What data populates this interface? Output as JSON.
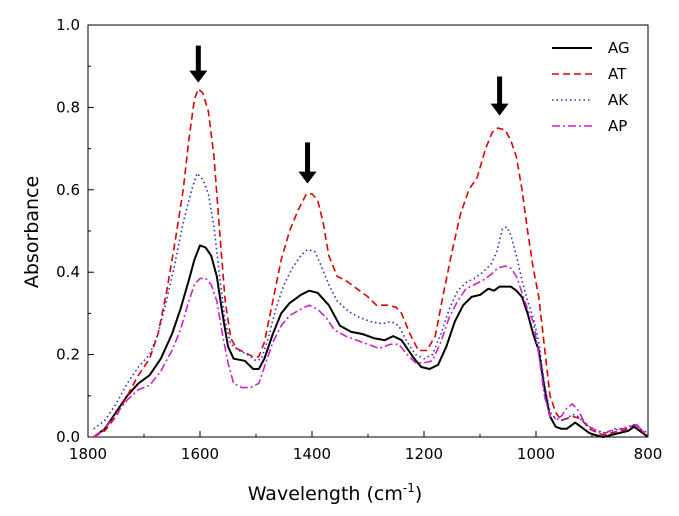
{
  "chart_data": {
    "type": "line",
    "title": "",
    "xlabel": "Wavelength (cm",
    "xlabel_sup": "-1",
    "xlabel_close": ")",
    "ylabel": "Absorbance",
    "xlim": [
      1800,
      800
    ],
    "ylim": [
      0.0,
      1.0
    ],
    "x_ticks": [
      1800,
      1600,
      1400,
      1200,
      1000,
      800
    ],
    "x_tick_labels": [
      "1800",
      "1600",
      "1400",
      "1200",
      "1000",
      "800"
    ],
    "y_ticks": [
      0.0,
      0.2,
      0.4,
      0.6,
      0.8,
      1.0
    ],
    "y_tick_labels": [
      "0.0",
      "0.2",
      "0.4",
      "0.6",
      "0.8",
      "1.0"
    ],
    "grid": false,
    "legend_position": "top-right",
    "annotations": [
      {
        "type": "arrow-down",
        "x": 1603,
        "tip_y": 0.86,
        "tail_y": 0.95
      },
      {
        "type": "arrow-down",
        "x": 1408,
        "tip_y": 0.615,
        "tail_y": 0.715
      },
      {
        "type": "arrow-down",
        "x": 1065,
        "tip_y": 0.78,
        "tail_y": 0.875
      }
    ],
    "series": [
      {
        "name": "AG",
        "color": "#000000",
        "style": "solid",
        "points": [
          [
            1790,
            0.0
          ],
          [
            1770,
            0.02
          ],
          [
            1750,
            0.06
          ],
          [
            1730,
            0.1
          ],
          [
            1710,
            0.13
          ],
          [
            1690,
            0.15
          ],
          [
            1670,
            0.19
          ],
          [
            1650,
            0.25
          ],
          [
            1635,
            0.31
          ],
          [
            1620,
            0.38
          ],
          [
            1610,
            0.43
          ],
          [
            1600,
            0.465
          ],
          [
            1590,
            0.46
          ],
          [
            1580,
            0.44
          ],
          [
            1570,
            0.39
          ],
          [
            1560,
            0.3
          ],
          [
            1550,
            0.22
          ],
          [
            1540,
            0.19
          ],
          [
            1520,
            0.185
          ],
          [
            1505,
            0.165
          ],
          [
            1495,
            0.165
          ],
          [
            1485,
            0.19
          ],
          [
            1470,
            0.25
          ],
          [
            1455,
            0.3
          ],
          [
            1440,
            0.325
          ],
          [
            1420,
            0.345
          ],
          [
            1405,
            0.355
          ],
          [
            1390,
            0.35
          ],
          [
            1370,
            0.32
          ],
          [
            1350,
            0.27
          ],
          [
            1330,
            0.255
          ],
          [
            1310,
            0.25
          ],
          [
            1290,
            0.24
          ],
          [
            1270,
            0.235
          ],
          [
            1255,
            0.245
          ],
          [
            1240,
            0.235
          ],
          [
            1220,
            0.195
          ],
          [
            1205,
            0.17
          ],
          [
            1190,
            0.165
          ],
          [
            1175,
            0.175
          ],
          [
            1160,
            0.22
          ],
          [
            1145,
            0.28
          ],
          [
            1130,
            0.32
          ],
          [
            1115,
            0.34
          ],
          [
            1100,
            0.345
          ],
          [
            1085,
            0.36
          ],
          [
            1075,
            0.355
          ],
          [
            1065,
            0.365
          ],
          [
            1055,
            0.365
          ],
          [
            1045,
            0.365
          ],
          [
            1035,
            0.355
          ],
          [
            1025,
            0.34
          ],
          [
            1015,
            0.3
          ],
          [
            1005,
            0.25
          ],
          [
            995,
            0.21
          ],
          [
            985,
            0.12
          ],
          [
            975,
            0.05
          ],
          [
            965,
            0.025
          ],
          [
            955,
            0.02
          ],
          [
            945,
            0.02
          ],
          [
            930,
            0.035
          ],
          [
            920,
            0.025
          ],
          [
            905,
            0.01
          ],
          [
            895,
            0.005
          ],
          [
            880,
            0.0
          ],
          [
            865,
            0.005
          ],
          [
            850,
            0.01
          ],
          [
            835,
            0.015
          ],
          [
            825,
            0.025
          ],
          [
            815,
            0.015
          ],
          [
            800,
            0.0
          ]
        ]
      },
      {
        "name": "AT",
        "color": "#e00000",
        "style": "dashed",
        "points": [
          [
            1790,
            0.0
          ],
          [
            1770,
            0.015
          ],
          [
            1750,
            0.05
          ],
          [
            1730,
            0.1
          ],
          [
            1710,
            0.15
          ],
          [
            1690,
            0.19
          ],
          [
            1675,
            0.25
          ],
          [
            1660,
            0.35
          ],
          [
            1645,
            0.47
          ],
          [
            1630,
            0.6
          ],
          [
            1620,
            0.72
          ],
          [
            1610,
            0.82
          ],
          [
            1603,
            0.845
          ],
          [
            1595,
            0.835
          ],
          [
            1585,
            0.79
          ],
          [
            1575,
            0.68
          ],
          [
            1565,
            0.5
          ],
          [
            1555,
            0.33
          ],
          [
            1545,
            0.24
          ],
          [
            1535,
            0.215
          ],
          [
            1520,
            0.205
          ],
          [
            1505,
            0.195
          ],
          [
            1495,
            0.195
          ],
          [
            1485,
            0.23
          ],
          [
            1470,
            0.33
          ],
          [
            1455,
            0.43
          ],
          [
            1440,
            0.5
          ],
          [
            1425,
            0.55
          ],
          [
            1410,
            0.59
          ],
          [
            1400,
            0.59
          ],
          [
            1390,
            0.575
          ],
          [
            1380,
            0.52
          ],
          [
            1370,
            0.44
          ],
          [
            1355,
            0.39
          ],
          [
            1340,
            0.38
          ],
          [
            1320,
            0.36
          ],
          [
            1300,
            0.34
          ],
          [
            1285,
            0.32
          ],
          [
            1265,
            0.32
          ],
          [
            1250,
            0.315
          ],
          [
            1240,
            0.3
          ],
          [
            1225,
            0.25
          ],
          [
            1210,
            0.21
          ],
          [
            1195,
            0.21
          ],
          [
            1180,
            0.245
          ],
          [
            1165,
            0.35
          ],
          [
            1150,
            0.45
          ],
          [
            1135,
            0.54
          ],
          [
            1120,
            0.6
          ],
          [
            1105,
            0.63
          ],
          [
            1090,
            0.7
          ],
          [
            1078,
            0.74
          ],
          [
            1068,
            0.75
          ],
          [
            1055,
            0.745
          ],
          [
            1045,
            0.72
          ],
          [
            1035,
            0.68
          ],
          [
            1025,
            0.6
          ],
          [
            1015,
            0.5
          ],
          [
            1005,
            0.41
          ],
          [
            995,
            0.34
          ],
          [
            985,
            0.22
          ],
          [
            975,
            0.1
          ],
          [
            965,
            0.06
          ],
          [
            955,
            0.04
          ],
          [
            945,
            0.045
          ],
          [
            935,
            0.05
          ],
          [
            920,
            0.045
          ],
          [
            905,
            0.02
          ],
          [
            890,
            0.01
          ],
          [
            880,
            0.005
          ],
          [
            865,
            0.01
          ],
          [
            850,
            0.015
          ],
          [
            835,
            0.02
          ],
          [
            825,
            0.03
          ],
          [
            815,
            0.02
          ],
          [
            800,
            0.0
          ]
        ]
      },
      {
        "name": "AK",
        "color": "#2a2acc",
        "style": "dotted",
        "points": [
          [
            1790,
            0.02
          ],
          [
            1770,
            0.04
          ],
          [
            1750,
            0.08
          ],
          [
            1730,
            0.13
          ],
          [
            1710,
            0.17
          ],
          [
            1690,
            0.2
          ],
          [
            1675,
            0.25
          ],
          [
            1660,
            0.33
          ],
          [
            1645,
            0.42
          ],
          [
            1630,
            0.52
          ],
          [
            1615,
            0.6
          ],
          [
            1605,
            0.64
          ],
          [
            1595,
            0.625
          ],
          [
            1585,
            0.59
          ],
          [
            1575,
            0.51
          ],
          [
            1565,
            0.39
          ],
          [
            1555,
            0.28
          ],
          [
            1545,
            0.225
          ],
          [
            1530,
            0.21
          ],
          [
            1515,
            0.2
          ],
          [
            1500,
            0.185
          ],
          [
            1490,
            0.19
          ],
          [
            1478,
            0.24
          ],
          [
            1465,
            0.31
          ],
          [
            1450,
            0.37
          ],
          [
            1435,
            0.41
          ],
          [
            1420,
            0.44
          ],
          [
            1408,
            0.455
          ],
          [
            1395,
            0.45
          ],
          [
            1385,
            0.42
          ],
          [
            1370,
            0.37
          ],
          [
            1355,
            0.33
          ],
          [
            1335,
            0.305
          ],
          [
            1315,
            0.29
          ],
          [
            1295,
            0.28
          ],
          [
            1275,
            0.275
          ],
          [
            1258,
            0.28
          ],
          [
            1245,
            0.27
          ],
          [
            1230,
            0.23
          ],
          [
            1215,
            0.2
          ],
          [
            1200,
            0.19
          ],
          [
            1185,
            0.2
          ],
          [
            1170,
            0.25
          ],
          [
            1155,
            0.31
          ],
          [
            1140,
            0.355
          ],
          [
            1125,
            0.375
          ],
          [
            1110,
            0.385
          ],
          [
            1095,
            0.4
          ],
          [
            1080,
            0.42
          ],
          [
            1070,
            0.45
          ],
          [
            1060,
            0.505
          ],
          [
            1052,
            0.51
          ],
          [
            1045,
            0.49
          ],
          [
            1035,
            0.44
          ],
          [
            1025,
            0.38
          ],
          [
            1015,
            0.33
          ],
          [
            1005,
            0.29
          ],
          [
            995,
            0.23
          ],
          [
            985,
            0.13
          ],
          [
            975,
            0.06
          ],
          [
            965,
            0.045
          ],
          [
            955,
            0.04
          ],
          [
            945,
            0.045
          ],
          [
            935,
            0.055
          ],
          [
            925,
            0.05
          ],
          [
            910,
            0.03
          ],
          [
            895,
            0.015
          ],
          [
            880,
            0.01
          ],
          [
            865,
            0.015
          ],
          [
            850,
            0.02
          ],
          [
            835,
            0.025
          ],
          [
            825,
            0.03
          ],
          [
            815,
            0.02
          ],
          [
            800,
            0.01
          ]
        ]
      },
      {
        "name": "AP",
        "color": "#cc22cc",
        "style": "dashdot",
        "points": [
          [
            1790,
            0.0
          ],
          [
            1770,
            0.02
          ],
          [
            1750,
            0.055
          ],
          [
            1730,
            0.09
          ],
          [
            1710,
            0.115
          ],
          [
            1690,
            0.125
          ],
          [
            1670,
            0.16
          ],
          [
            1650,
            0.21
          ],
          [
            1635,
            0.26
          ],
          [
            1620,
            0.33
          ],
          [
            1610,
            0.37
          ],
          [
            1600,
            0.385
          ],
          [
            1590,
            0.385
          ],
          [
            1580,
            0.37
          ],
          [
            1570,
            0.33
          ],
          [
            1560,
            0.25
          ],
          [
            1550,
            0.18
          ],
          [
            1540,
            0.13
          ],
          [
            1525,
            0.12
          ],
          [
            1510,
            0.12
          ],
          [
            1495,
            0.13
          ],
          [
            1485,
            0.17
          ],
          [
            1470,
            0.23
          ],
          [
            1455,
            0.27
          ],
          [
            1440,
            0.295
          ],
          [
            1420,
            0.31
          ],
          [
            1405,
            0.32
          ],
          [
            1390,
            0.31
          ],
          [
            1375,
            0.29
          ],
          [
            1360,
            0.26
          ],
          [
            1340,
            0.245
          ],
          [
            1320,
            0.235
          ],
          [
            1300,
            0.225
          ],
          [
            1280,
            0.215
          ],
          [
            1260,
            0.225
          ],
          [
            1245,
            0.225
          ],
          [
            1230,
            0.2
          ],
          [
            1215,
            0.18
          ],
          [
            1200,
            0.18
          ],
          [
            1185,
            0.185
          ],
          [
            1170,
            0.23
          ],
          [
            1155,
            0.29
          ],
          [
            1140,
            0.33
          ],
          [
            1125,
            0.36
          ],
          [
            1110,
            0.37
          ],
          [
            1095,
            0.38
          ],
          [
            1080,
            0.395
          ],
          [
            1068,
            0.41
          ],
          [
            1055,
            0.415
          ],
          [
            1045,
            0.41
          ],
          [
            1035,
            0.39
          ],
          [
            1025,
            0.35
          ],
          [
            1015,
            0.31
          ],
          [
            1005,
            0.28
          ],
          [
            995,
            0.2
          ],
          [
            985,
            0.1
          ],
          [
            975,
            0.05
          ],
          [
            965,
            0.045
          ],
          [
            955,
            0.05
          ],
          [
            945,
            0.07
          ],
          [
            935,
            0.08
          ],
          [
            925,
            0.065
          ],
          [
            915,
            0.04
          ],
          [
            905,
            0.025
          ],
          [
            890,
            0.015
          ],
          [
            875,
            0.01
          ],
          [
            860,
            0.02
          ],
          [
            845,
            0.02
          ],
          [
            830,
            0.025
          ],
          [
            820,
            0.03
          ],
          [
            810,
            0.015
          ],
          [
            800,
            0.005
          ]
        ]
      }
    ]
  }
}
